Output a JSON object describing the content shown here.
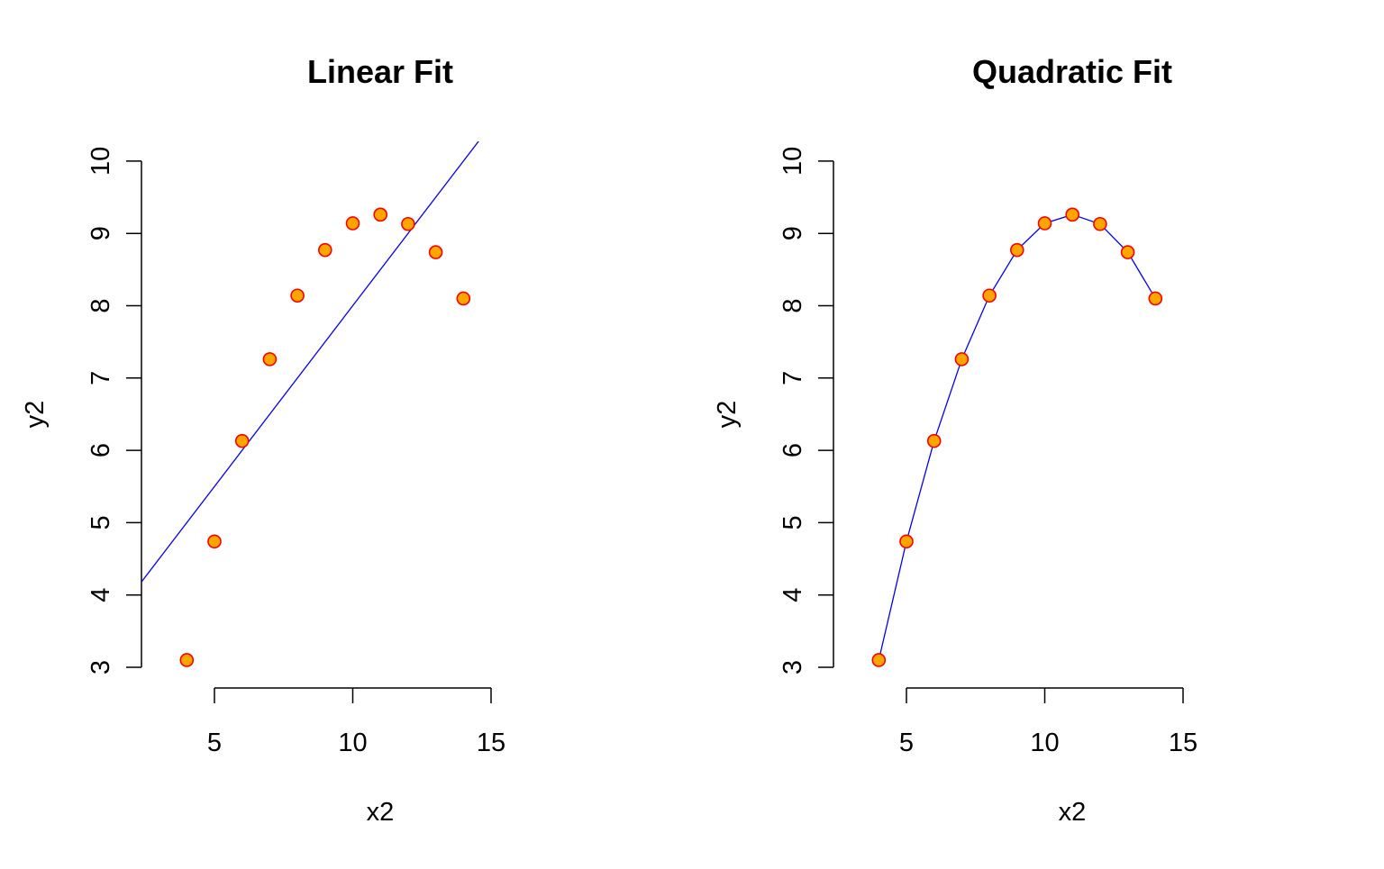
{
  "chart_data": [
    {
      "type": "scatter",
      "title": "Linear Fit",
      "xlabel": "x2",
      "ylabel": "y2",
      "x_ticks": [
        5,
        10,
        15
      ],
      "y_ticks": [
        3,
        4,
        5,
        6,
        7,
        8,
        9,
        10
      ],
      "x": [
        4,
        5,
        6,
        7,
        8,
        9,
        10,
        11,
        12,
        13,
        14
      ],
      "y": [
        3.1,
        4.74,
        6.13,
        7.26,
        8.14,
        8.77,
        9.14,
        9.26,
        9.13,
        8.74,
        8.1
      ],
      "fit": {
        "type": "line",
        "intercept": 3.0,
        "slope": 0.5
      },
      "grid": false,
      "point_fill": "#FFA500",
      "point_border": "#FF0000",
      "fit_color": "#0000FF"
    },
    {
      "type": "scatter",
      "title": "Quadratic Fit",
      "xlabel": "x2",
      "ylabel": "y2",
      "x_ticks": [
        5,
        10,
        15
      ],
      "y_ticks": [
        3,
        4,
        5,
        6,
        7,
        8,
        9,
        10
      ],
      "x": [
        4,
        5,
        6,
        7,
        8,
        9,
        10,
        11,
        12,
        13,
        14
      ],
      "y": [
        3.1,
        4.74,
        6.13,
        7.26,
        8.14,
        8.77,
        9.14,
        9.26,
        9.13,
        8.74,
        8.1
      ],
      "fit": {
        "type": "quadratic",
        "fitted": [
          3.1,
          4.74,
          6.13,
          7.26,
          8.14,
          8.77,
          9.14,
          9.26,
          9.13,
          8.74,
          8.1
        ]
      },
      "grid": false,
      "point_fill": "#FFA500",
      "point_border": "#FF0000",
      "fit_color": "#0000FF"
    }
  ]
}
